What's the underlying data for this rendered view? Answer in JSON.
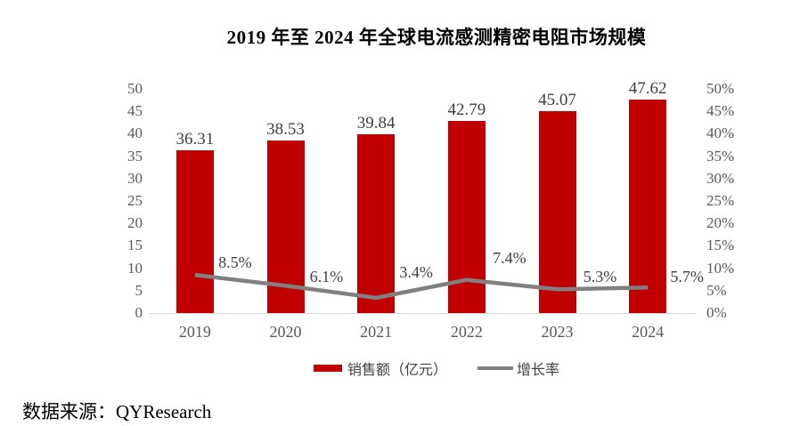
{
  "title": "2019 年至 2024 年全球电流感测精密电阻市场规模",
  "source": "数据来源：QYResearch",
  "colors": {
    "bar": "#c00000",
    "line": "#808080",
    "axis_line": "#d9d9d9",
    "tick_text": "#595959",
    "label_text": "#3f3f3f"
  },
  "chart_data": {
    "type": "bar",
    "subtype": "bar+line combo, dual axis",
    "title": "2019 年至 2024 年全球电流感测精密电阻市场规模",
    "categories": [
      "2019",
      "2020",
      "2021",
      "2022",
      "2023",
      "2024"
    ],
    "series": [
      {
        "name": "销售额（亿元）",
        "type": "bar",
        "axis": "left",
        "color": "#c00000",
        "values": [
          36.31,
          38.53,
          39.84,
          42.79,
          45.07,
          47.62
        ],
        "labels": [
          "36.31",
          "38.53",
          "39.84",
          "42.79",
          "45.07",
          "47.62"
        ]
      },
      {
        "name": "增长率",
        "type": "line",
        "axis": "right",
        "color": "#808080",
        "values": [
          8.5,
          6.1,
          3.4,
          7.4,
          5.3,
          5.7
        ],
        "labels": [
          "8.5%",
          "6.1%",
          "3.4%",
          "7.4%",
          "5.3%",
          "5.7%"
        ]
      }
    ],
    "left_axis": {
      "min": 0,
      "max": 50,
      "step": 5,
      "ticks": [
        "0",
        "5",
        "10",
        "15",
        "20",
        "25",
        "30",
        "35",
        "40",
        "45",
        "50"
      ]
    },
    "right_axis": {
      "min": 0,
      "max": 50,
      "step": 5,
      "ticks": [
        "0%",
        "5%",
        "10%",
        "15%",
        "20%",
        "25%",
        "30%",
        "35%",
        "40%",
        "45%",
        "50%"
      ]
    },
    "grid": false,
    "legend_position": "bottom",
    "xlabel": "",
    "ylabel": ""
  }
}
